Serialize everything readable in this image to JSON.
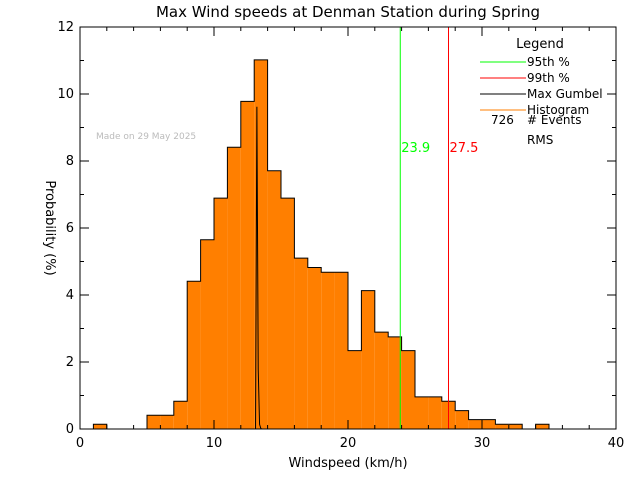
{
  "chart_data": {
    "type": "bar",
    "title": "Max Wind speeds at Denman Station during Spring",
    "xlabel": "Windspeed (km/h)",
    "ylabel": "Probability (%)",
    "xlim": [
      0,
      40
    ],
    "ylim": [
      0,
      12
    ],
    "xticks": [
      0,
      10,
      20,
      30,
      40
    ],
    "yticks": [
      0,
      2,
      4,
      6,
      8,
      10,
      12
    ],
    "watermark": "Made on 29 May 2025",
    "bin_width": 1,
    "bins_x": [
      1,
      5,
      6,
      7,
      8,
      9,
      10,
      11,
      12,
      13,
      14,
      15,
      16,
      17,
      18,
      19,
      20,
      21,
      22,
      23,
      24,
      25,
      26,
      27,
      28,
      29,
      30,
      31,
      32,
      33,
      34,
      35,
      36
    ],
    "bins_y": [
      0.14,
      0.41,
      0.41,
      0.83,
      4.41,
      5.65,
      6.89,
      8.41,
      9.78,
      11.02,
      7.71,
      6.89,
      5.1,
      4.82,
      4.68,
      4.68,
      2.34,
      4.13,
      2.89,
      2.75,
      2.34,
      0.96,
      0.96,
      0.83,
      0.55,
      0.28,
      0.28,
      0.14,
      0.14,
      0.0,
      0.14,
      0.0,
      0.0
    ],
    "histogram_color": "#ff7f00",
    "gumbel": {
      "peak_x": 13.2,
      "peak_y": 9.62,
      "color": "#000000"
    },
    "percentiles": [
      {
        "label": "23.9",
        "value": 23.9,
        "color": "#00ff00"
      },
      {
        "label": "27.5",
        "value": 27.5,
        "color": "#ff0000"
      }
    ],
    "legend": {
      "title": "Legend",
      "placement": "top-right",
      "items": [
        {
          "label": "95th %",
          "color": "#00ff00"
        },
        {
          "label": "99th %",
          "color": "#ff0000"
        },
        {
          "label": "Max Gumbel",
          "color": "#000000"
        },
        {
          "label": "Histogram",
          "color": "#ff7f00"
        }
      ],
      "events_count": "726",
      "events_label": "# Events",
      "rms_label": "RMS"
    }
  }
}
